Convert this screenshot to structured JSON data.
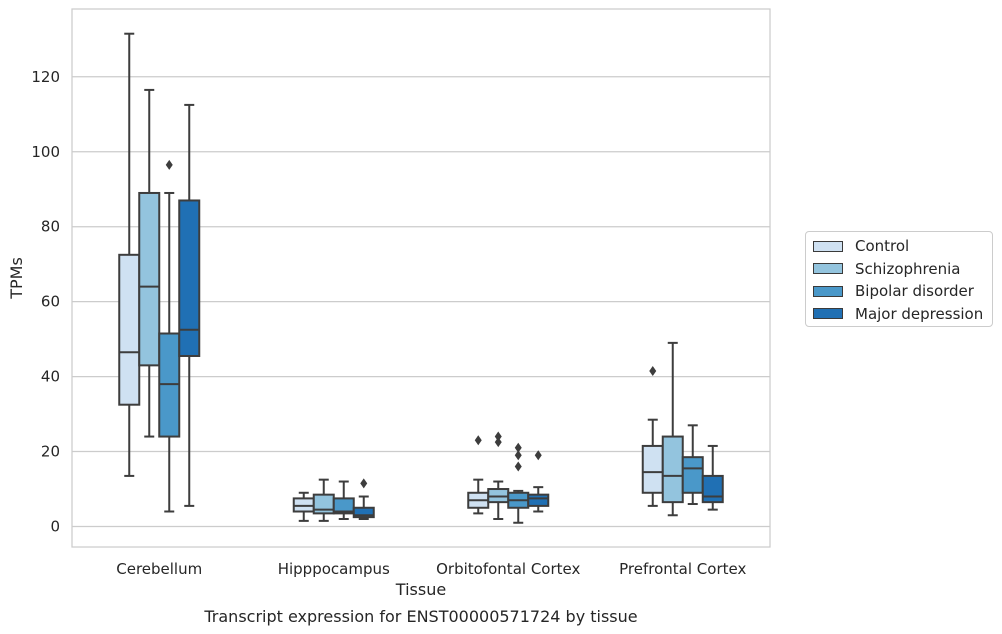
{
  "chart_data": {
    "type": "box",
    "caption": "Transcript expression for ENST00000571724 by tissue",
    "xlabel": "Tissue",
    "ylabel": "TPMs",
    "ylim": [
      -6,
      138
    ],
    "yticks": [
      0,
      20,
      40,
      60,
      80,
      100,
      120
    ],
    "grid": "horizontal",
    "legend_position": "right",
    "categories": [
      "Cerebellum",
      "Hipppocampus",
      "Orbitofontal Cortex",
      "Prefrontal Cortex"
    ],
    "series": [
      {
        "name": "Control",
        "color": "#cfe1f2",
        "boxes": [
          {
            "whisker_low": 13.5,
            "q1": 32.5,
            "median": 46.5,
            "q3": 72.5,
            "whisker_high": 131.5,
            "outliers": []
          },
          {
            "whisker_low": 1.5,
            "q1": 4.0,
            "median": 5.5,
            "q3": 7.5,
            "whisker_high": 9.0,
            "outliers": []
          },
          {
            "whisker_low": 3.5,
            "q1": 5.0,
            "median": 7.0,
            "q3": 9.0,
            "whisker_high": 12.5,
            "outliers": [
              23.0
            ]
          },
          {
            "whisker_low": 5.5,
            "q1": 9.0,
            "median": 14.5,
            "q3": 21.5,
            "whisker_high": 28.5,
            "outliers": [
              41.5
            ]
          }
        ]
      },
      {
        "name": "Schizophrenia",
        "color": "#93c4de",
        "boxes": [
          {
            "whisker_low": 24.0,
            "q1": 43.0,
            "median": 64.0,
            "q3": 89.0,
            "whisker_high": 116.5,
            "outliers": []
          },
          {
            "whisker_low": 1.5,
            "q1": 3.5,
            "median": 4.5,
            "q3": 8.5,
            "whisker_high": 12.5,
            "outliers": []
          },
          {
            "whisker_low": 2.0,
            "q1": 6.5,
            "median": 8.0,
            "q3": 10.0,
            "whisker_high": 12.0,
            "outliers": [
              22.5,
              24.0
            ]
          },
          {
            "whisker_low": 3.0,
            "q1": 6.5,
            "median": 13.5,
            "q3": 24.0,
            "whisker_high": 49.0,
            "outliers": []
          }
        ]
      },
      {
        "name": "Bipolar disorder",
        "color": "#4a98c9",
        "boxes": [
          {
            "whisker_low": 4.0,
            "q1": 24.0,
            "median": 38.0,
            "q3": 51.5,
            "whisker_high": 89.0,
            "outliers": [
              96.5
            ]
          },
          {
            "whisker_low": 2.0,
            "q1": 3.5,
            "median": 4.0,
            "q3": 7.5,
            "whisker_high": 12.0,
            "outliers": []
          },
          {
            "whisker_low": 1.0,
            "q1": 5.0,
            "median": 7.0,
            "q3": 9.0,
            "whisker_high": 9.5,
            "outliers": [
              16.0,
              19.0,
              21.0
            ]
          },
          {
            "whisker_low": 6.0,
            "q1": 9.0,
            "median": 15.5,
            "q3": 18.5,
            "whisker_high": 27.0,
            "outliers": []
          }
        ]
      },
      {
        "name": "Major depression",
        "color": "#2070b4",
        "boxes": [
          {
            "whisker_low": 5.5,
            "q1": 45.5,
            "median": 52.5,
            "q3": 87.0,
            "whisker_high": 112.5,
            "outliers": []
          },
          {
            "whisker_low": 2.0,
            "q1": 2.5,
            "median": 3.0,
            "q3": 5.0,
            "whisker_high": 8.0,
            "outliers": [
              11.5
            ]
          },
          {
            "whisker_low": 4.0,
            "q1": 5.5,
            "median": 7.5,
            "q3": 8.5,
            "whisker_high": 10.5,
            "outliers": [
              19.0
            ]
          },
          {
            "whisker_low": 4.5,
            "q1": 6.5,
            "median": 8.0,
            "q3": 13.5,
            "whisker_high": 21.5,
            "outliers": []
          }
        ]
      }
    ]
  }
}
